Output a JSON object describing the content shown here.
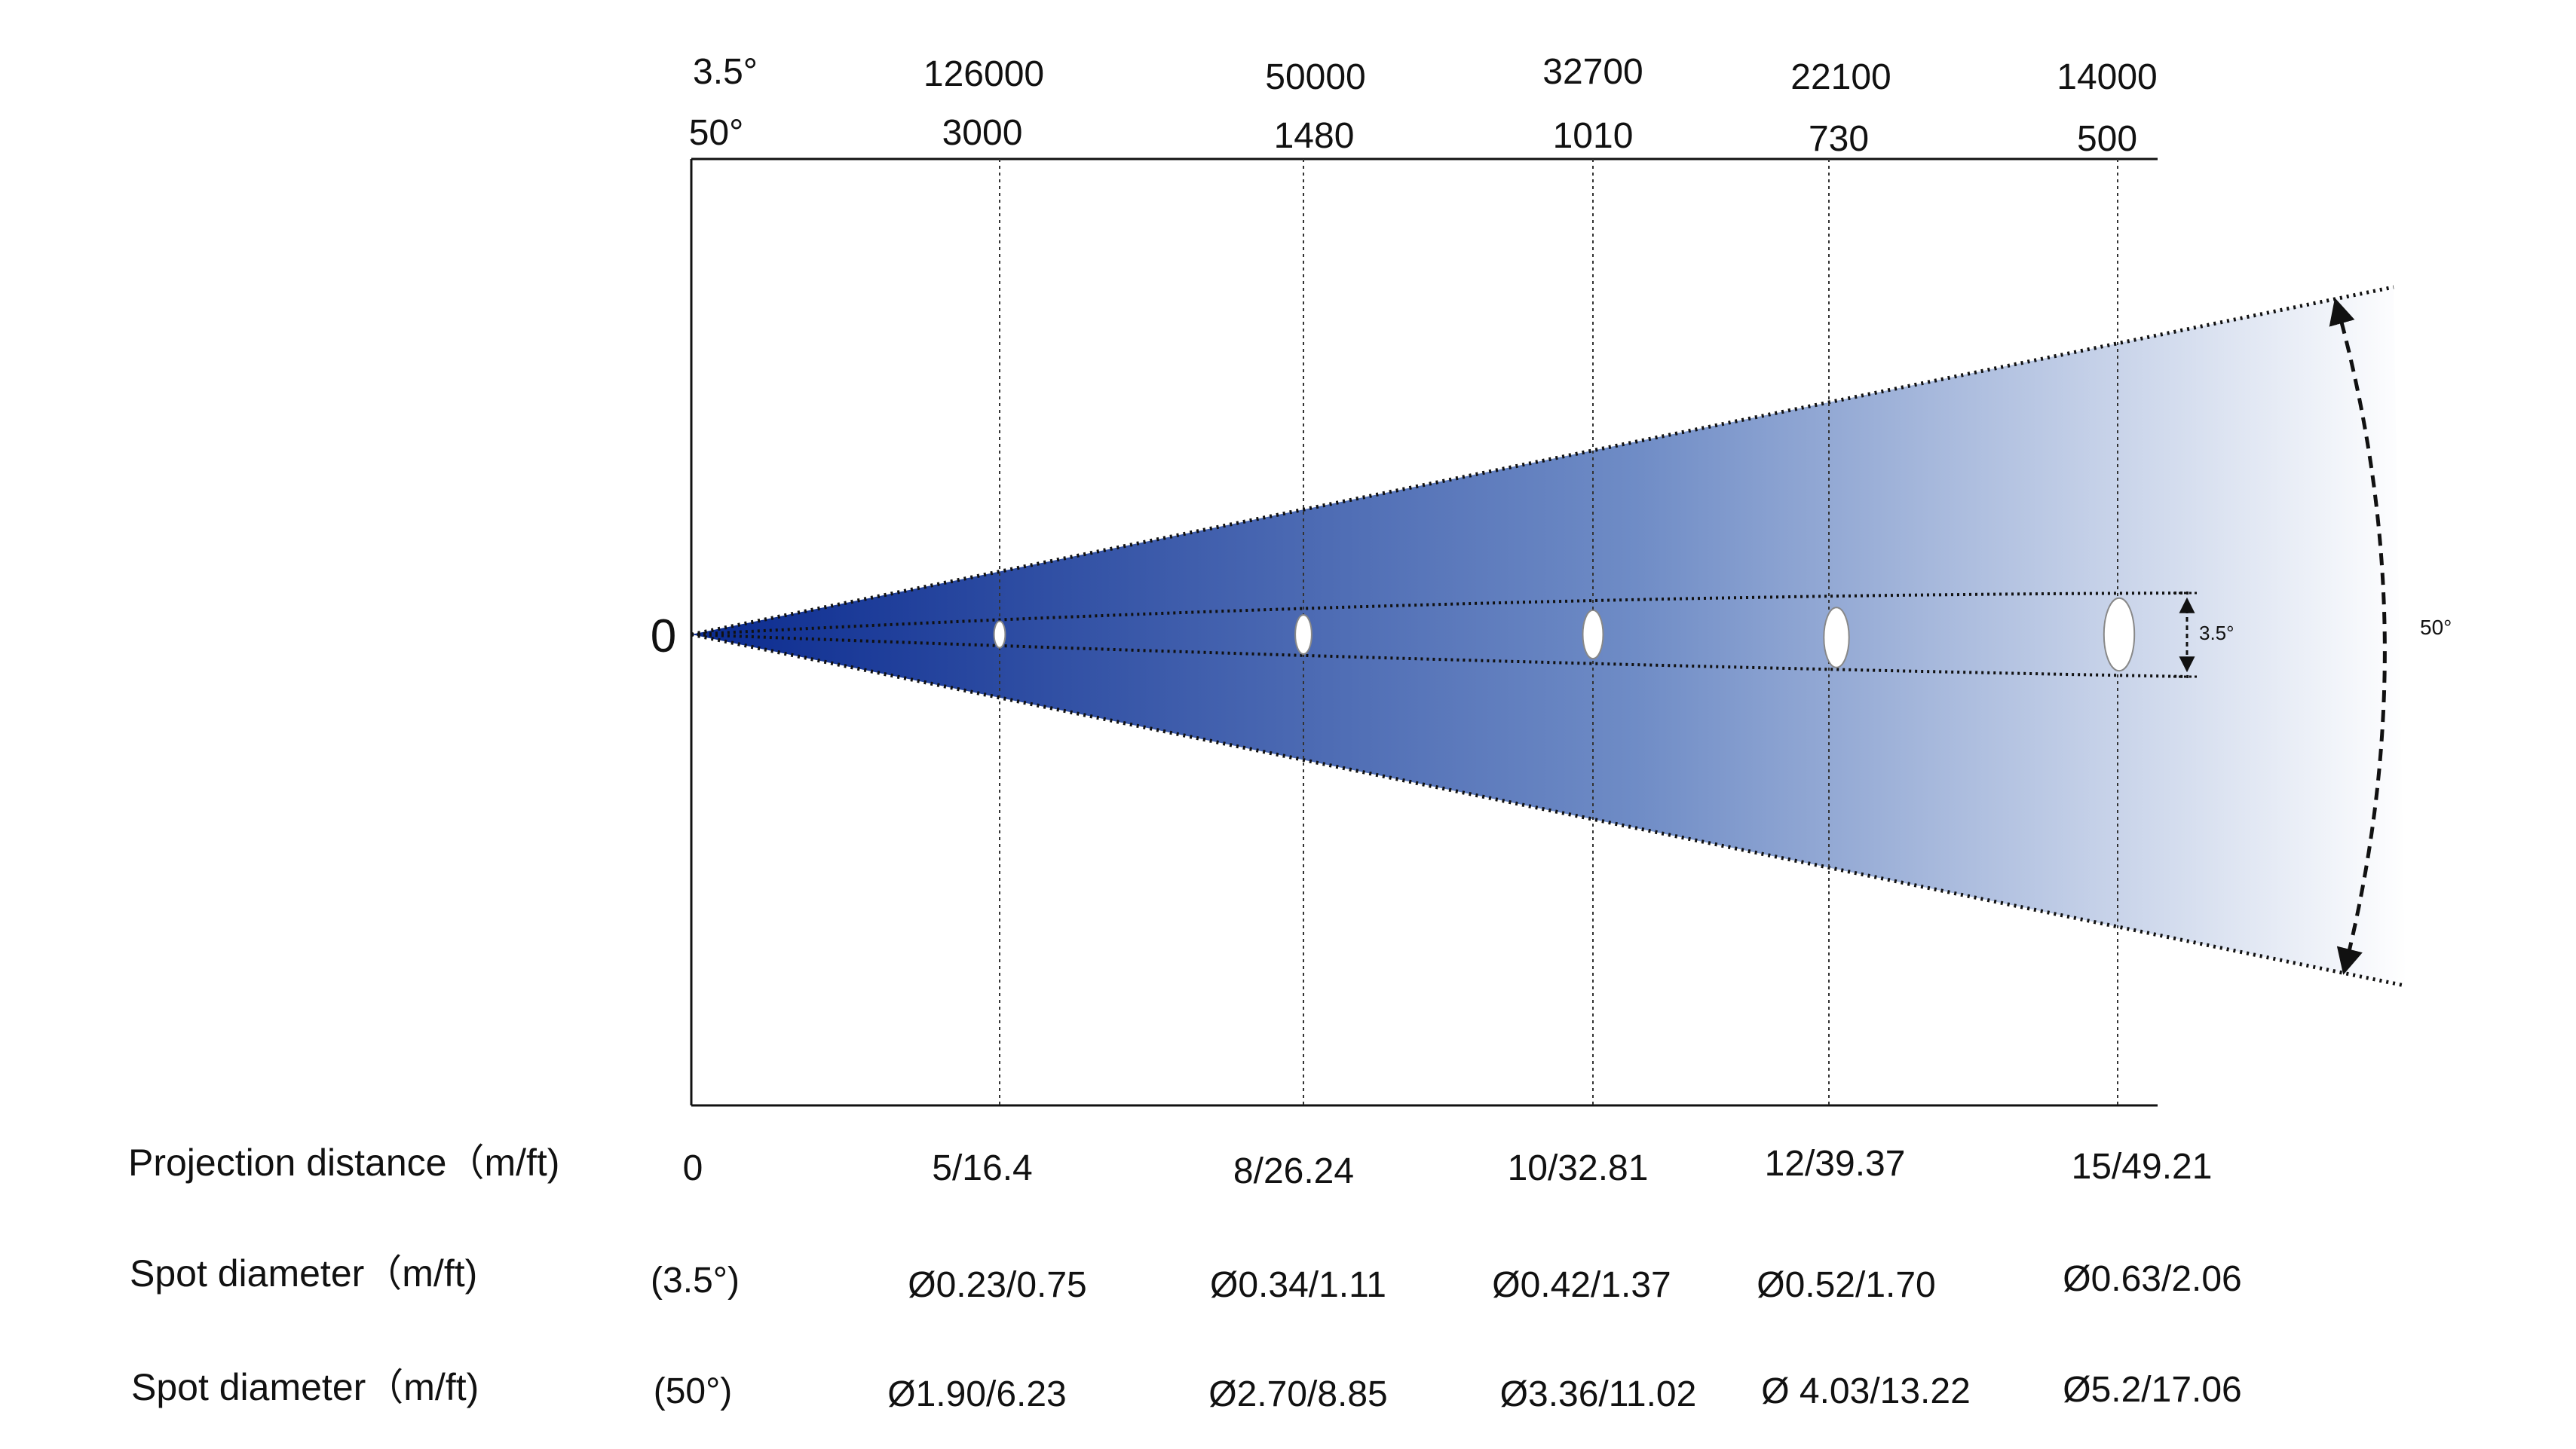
{
  "header": {
    "row1_label": "3.5°",
    "row2_label": "50°",
    "row1_values": [
      "126000",
      "50000",
      "32700",
      "22100",
      "14000"
    ],
    "row2_values": [
      "3000",
      "1480",
      "1010",
      "730",
      "500"
    ]
  },
  "origin_label": "0",
  "angles": {
    "narrow_label": "3.5°",
    "wide_label": "50°",
    "narrow_deg": 3.5,
    "wide_deg": 50
  },
  "rows": {
    "distance": {
      "label": "Projection distance（m/ft)",
      "origin_value": "0",
      "values": [
        "5/16.4",
        "8/26.24",
        "10/32.81",
        "12/39.37",
        "15/49.21"
      ]
    },
    "spot_narrow": {
      "label": "Spot diameter（m/ft)",
      "angle": "(3.5°)",
      "values": [
        "Ø0.23/0.75",
        "Ø0.34/1.11",
        "Ø0.42/1.37",
        "Ø0.52/1.70",
        "Ø0.63/2.06"
      ]
    },
    "spot_wide": {
      "label": "Spot diameter（m/ft)",
      "angle": "(50°)",
      "values": [
        "Ø1.90/6.23",
        "Ø2.70/8.85",
        "Ø3.36/11.02",
        "Ø 4.03/13.22",
        "Ø5.2/17.06"
      ]
    }
  },
  "stations": [
    {
      "distance_m": 5,
      "spot_narrow_m": 0.23
    },
    {
      "distance_m": 8,
      "spot_narrow_m": 0.34
    },
    {
      "distance_m": 10,
      "spot_narrow_m": 0.42
    },
    {
      "distance_m": 12,
      "spot_narrow_m": 0.52
    },
    {
      "distance_m": 15,
      "spot_narrow_m": 0.63
    }
  ],
  "colors": {
    "beam_start": "#0a2a8f",
    "beam_mid": "#6f8cc6",
    "beam_end": "#ffffff",
    "line": "#111111"
  }
}
